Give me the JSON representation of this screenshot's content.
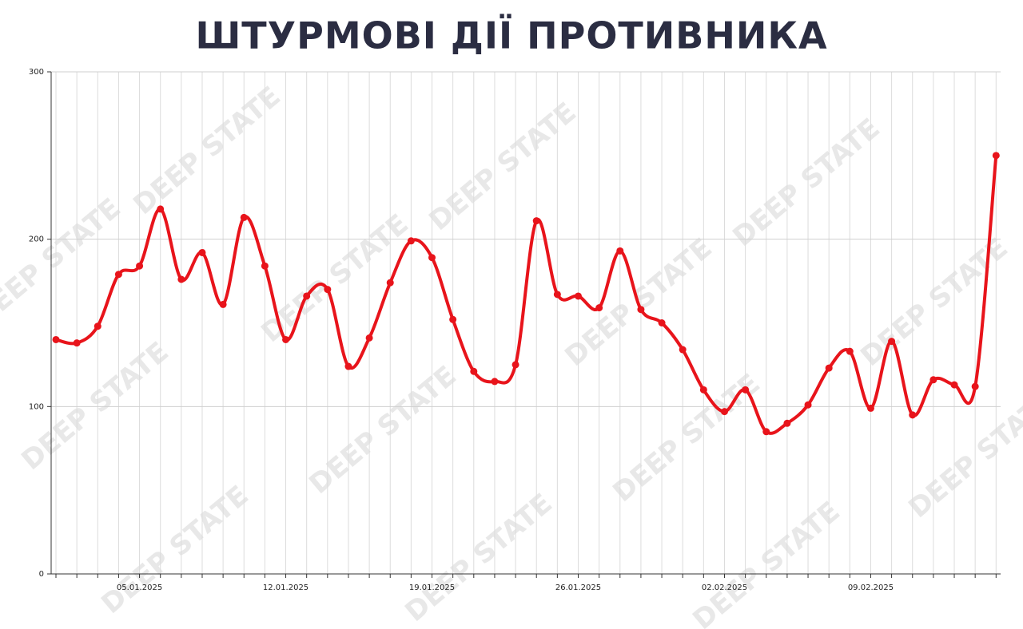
{
  "chart_data": {
    "type": "line",
    "title": "ШТУРМОВІ ДІЇ ПРОТИВНИКА",
    "watermark": "DEEP STATE",
    "categories": [
      null,
      null,
      null,
      null,
      "05.01.2025",
      null,
      null,
      null,
      null,
      null,
      null,
      "12.01.2025",
      null,
      null,
      null,
      null,
      null,
      null,
      "19.01.2025",
      null,
      null,
      null,
      null,
      null,
      null,
      "26.01.2025",
      null,
      null,
      null,
      null,
      null,
      null,
      "02.02.2025",
      null,
      null,
      null,
      null,
      null,
      null,
      "09.02.2025",
      null,
      null,
      null,
      null,
      null,
      null
    ],
    "series": [
      {
        "color": "#e8141b",
        "values": [
          140,
          138,
          148,
          179,
          184,
          218,
          176,
          192,
          161,
          213,
          184,
          140,
          166,
          170,
          124,
          141,
          174,
          199,
          189,
          152,
          121,
          115,
          125,
          211,
          167,
          166,
          159,
          193,
          158,
          150,
          134,
          110,
          97,
          110,
          85,
          90,
          101,
          123,
          133,
          99,
          139,
          95,
          116,
          113,
          112,
          250
        ]
      }
    ],
    "ylim": [
      0,
      300
    ],
    "yticks": [
      0,
      100,
      200,
      300
    ],
    "grid": true
  }
}
